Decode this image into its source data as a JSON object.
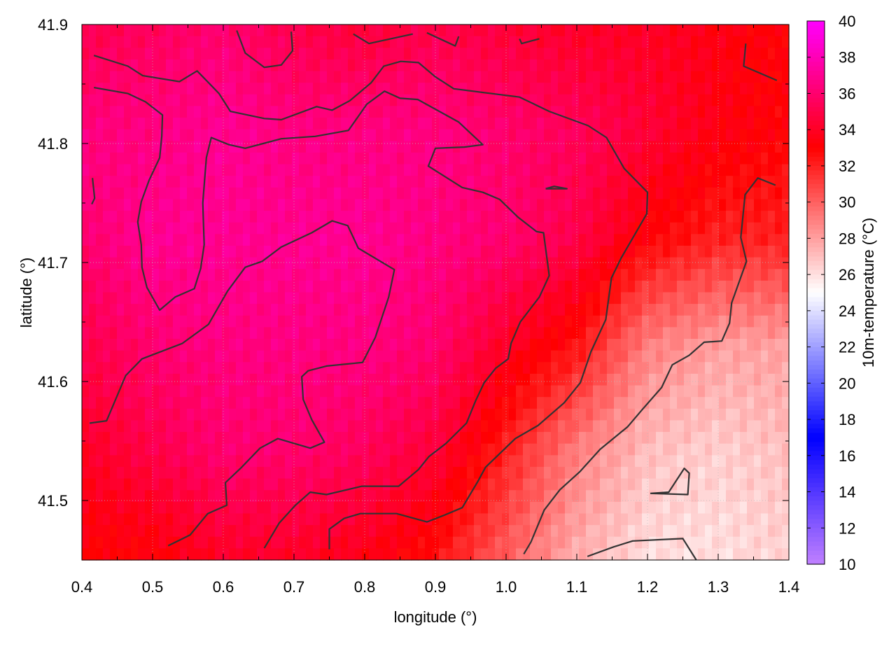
{
  "chart_data": {
    "type": "heatmap",
    "title": "",
    "xlabel": "longitude (°)",
    "ylabel": "latitude (°)",
    "colorbar_label": "10m-temperature (°C)",
    "xlim": [
      0.4,
      1.4
    ],
    "ylim": [
      41.45,
      41.9
    ],
    "x_ticks": [
      "0.4",
      "0.5",
      "0.6",
      "0.7",
      "0.8",
      "0.9",
      "1.0",
      "1.1",
      "1.2",
      "1.3",
      "1.4"
    ],
    "y_ticks": [
      "41.5",
      "41.6",
      "41.7",
      "41.8",
      "41.9"
    ],
    "colorbar_ticks": [
      "10",
      "12",
      "14",
      "16",
      "18",
      "20",
      "22",
      "24",
      "26",
      "28",
      "30",
      "32",
      "34",
      "36",
      "38",
      "40"
    ],
    "clim": [
      10,
      40
    ],
    "colormap": [
      {
        "value": 10,
        "color": "#c080ff"
      },
      {
        "value": 17,
        "color": "#0000ff"
      },
      {
        "value": 25,
        "color": "#ffffff"
      },
      {
        "value": 33,
        "color": "#ff0000"
      },
      {
        "value": 40,
        "color": "#ff00ff"
      }
    ],
    "grid": true,
    "contour_color": "#333333",
    "temperature_grid": {
      "lon": [
        0.4,
        0.5,
        0.6,
        0.7,
        0.8,
        0.9,
        1.0,
        1.1,
        1.2,
        1.3,
        1.4
      ],
      "lat": [
        41.9,
        41.81,
        41.72,
        41.63,
        41.54,
        41.45
      ],
      "values": [
        [
          35,
          35.5,
          36,
          35,
          34.5,
          35,
          34.5,
          34,
          34,
          33.5,
          33
        ],
        [
          36.5,
          36.5,
          37,
          36.5,
          36.5,
          36.5,
          36,
          35.5,
          34.5,
          33.5,
          33
        ],
        [
          36,
          37,
          37,
          37,
          37,
          36.5,
          36,
          35,
          33,
          32,
          32
        ],
        [
          35,
          36,
          36.5,
          36.5,
          36.5,
          36,
          34,
          32.5,
          29,
          28,
          28
        ],
        [
          34,
          35,
          36,
          36,
          35.5,
          34.5,
          32,
          29,
          27,
          26.5,
          27
        ],
        [
          33,
          33,
          34,
          34,
          33.5,
          32.5,
          30,
          27.5,
          26,
          26,
          26.5
        ]
      ]
    },
    "contours": [
      [
        [
          0.411,
          41.565
        ],
        [
          0.435,
          41.567
        ],
        [
          0.462,
          41.605
        ],
        [
          0.485,
          41.619
        ],
        [
          0.542,
          41.632
        ],
        [
          0.579,
          41.648
        ],
        [
          0.606,
          41.676
        ],
        [
          0.631,
          41.696
        ],
        [
          0.655,
          41.701
        ],
        [
          0.682,
          41.713
        ],
        [
          0.725,
          41.725
        ],
        [
          0.754,
          41.735
        ],
        [
          0.776,
          41.731
        ],
        [
          0.791,
          41.712
        ],
        [
          0.842,
          41.694
        ],
        [
          0.834,
          41.671
        ],
        [
          0.815,
          41.637
        ],
        [
          0.797,
          41.616
        ],
        [
          0.746,
          41.613
        ],
        [
          0.72,
          41.609
        ],
        [
          0.711,
          41.604
        ],
        [
          0.713,
          41.585
        ],
        [
          0.725,
          41.568
        ],
        [
          0.743,
          41.549
        ],
        [
          0.723,
          41.544
        ],
        [
          0.677,
          41.552
        ],
        [
          0.652,
          41.544
        ],
        [
          0.626,
          41.528
        ],
        [
          0.603,
          41.515
        ],
        [
          0.605,
          41.496
        ],
        [
          0.578,
          41.489
        ],
        [
          0.553,
          41.471
        ],
        [
          0.522,
          41.462
        ]
      ],
      [
        [
          0.417,
          41.874
        ],
        [
          0.465,
          41.865
        ],
        [
          0.486,
          41.857
        ],
        [
          0.538,
          41.852
        ],
        [
          0.563,
          41.861
        ],
        [
          0.594,
          41.842
        ],
        [
          0.61,
          41.827
        ],
        [
          0.658,
          41.821
        ],
        [
          0.682,
          41.82
        ],
        [
          0.732,
          41.831
        ],
        [
          0.754,
          41.828
        ],
        [
          0.779,
          41.836
        ],
        [
          0.809,
          41.851
        ],
        [
          0.827,
          41.865
        ],
        [
          0.851,
          41.869
        ],
        [
          0.876,
          41.868
        ],
        [
          0.9,
          41.856
        ],
        [
          0.926,
          41.846
        ],
        [
          1.019,
          41.839
        ],
        [
          1.061,
          41.827
        ],
        [
          1.116,
          41.815
        ],
        [
          1.142,
          41.805
        ],
        [
          1.167,
          41.779
        ],
        [
          1.2,
          41.759
        ],
        [
          1.199,
          41.741
        ],
        [
          1.163,
          41.704
        ],
        [
          1.149,
          41.687
        ],
        [
          1.141,
          41.652
        ],
        [
          1.12,
          41.625
        ],
        [
          1.105,
          41.599
        ],
        [
          1.082,
          41.582
        ],
        [
          1.045,
          41.563
        ],
        [
          1.013,
          41.552
        ],
        [
          0.971,
          41.528
        ],
        [
          0.96,
          41.516
        ],
        [
          0.938,
          41.494
        ],
        [
          0.914,
          41.488
        ],
        [
          0.888,
          41.482
        ],
        [
          0.845,
          41.489
        ],
        [
          0.794,
          41.489
        ],
        [
          0.771,
          41.485
        ],
        [
          0.75,
          41.476
        ],
        [
          0.75,
          41.459
        ]
      ],
      [
        [
          0.417,
          41.847
        ],
        [
          0.465,
          41.842
        ],
        [
          0.49,
          41.835
        ],
        [
          0.514,
          41.824
        ],
        [
          0.513,
          41.806
        ],
        [
          0.51,
          41.788
        ],
        [
          0.495,
          41.769
        ],
        [
          0.484,
          41.751
        ],
        [
          0.479,
          41.734
        ],
        [
          0.484,
          41.715
        ],
        [
          0.485,
          41.696
        ],
        [
          0.492,
          41.679
        ],
        [
          0.51,
          41.66
        ],
        [
          0.532,
          41.671
        ],
        [
          0.559,
          41.678
        ],
        [
          0.568,
          41.695
        ],
        [
          0.573,
          41.715
        ],
        [
          0.571,
          41.75
        ],
        [
          0.576,
          41.788
        ],
        [
          0.583,
          41.805
        ],
        [
          0.608,
          41.799
        ],
        [
          0.631,
          41.796
        ],
        [
          0.682,
          41.804
        ],
        [
          0.73,
          41.806
        ],
        [
          0.777,
          41.811
        ],
        [
          0.803,
          41.833
        ],
        [
          0.828,
          41.844
        ],
        [
          0.85,
          41.838
        ],
        [
          0.875,
          41.837
        ],
        [
          0.933,
          41.818
        ],
        [
          0.967,
          41.799
        ],
        [
          0.941,
          41.797
        ],
        [
          0.9,
          41.796
        ],
        [
          0.89,
          41.781
        ],
        [
          0.938,
          41.763
        ],
        [
          0.967,
          41.759
        ],
        [
          0.991,
          41.753
        ],
        [
          1.017,
          41.738
        ],
        [
          1.043,
          41.726
        ],
        [
          1.053,
          41.725
        ],
        [
          1.061,
          41.689
        ],
        [
          1.047,
          41.671
        ],
        [
          1.02,
          41.65
        ],
        [
          1.007,
          41.632
        ],
        [
          1.003,
          41.619
        ],
        [
          0.985,
          41.611
        ],
        [
          0.969,
          41.599
        ],
        [
          0.957,
          41.584
        ],
        [
          0.944,
          41.565
        ],
        [
          0.915,
          41.548
        ],
        [
          0.891,
          41.537
        ],
        [
          0.876,
          41.526
        ],
        [
          0.848,
          41.512
        ],
        [
          0.796,
          41.512
        ],
        [
          0.746,
          41.505
        ],
        [
          0.723,
          41.507
        ],
        [
          0.702,
          41.496
        ],
        [
          0.679,
          41.481
        ],
        [
          0.658,
          41.46
        ]
      ],
      [
        [
          1.025,
          41.455
        ],
        [
          1.035,
          41.465
        ],
        [
          1.054,
          41.492
        ],
        [
          1.076,
          41.509
        ],
        [
          1.104,
          41.524
        ],
        [
          1.133,
          41.543
        ],
        [
          1.172,
          41.562
        ],
        [
          1.192,
          41.576
        ],
        [
          1.22,
          41.595
        ],
        [
          1.235,
          41.614
        ],
        [
          1.259,
          41.622
        ],
        [
          1.28,
          41.633
        ],
        [
          1.305,
          41.634
        ],
        [
          1.316,
          41.649
        ],
        [
          1.319,
          41.666
        ],
        [
          1.34,
          41.701
        ],
        [
          1.332,
          41.721
        ],
        [
          1.338,
          41.757
        ],
        [
          1.356,
          41.771
        ],
        [
          1.381,
          41.765
        ]
      ],
      [
        [
          1.115,
          41.453
        ],
        [
          1.152,
          41.461
        ],
        [
          1.179,
          41.466
        ],
        [
          1.25,
          41.468
        ],
        [
          1.269,
          41.45
        ]
      ],
      [
        [
          1.204,
          41.506
        ],
        [
          1.23,
          41.507
        ],
        [
          1.252,
          41.527
        ],
        [
          1.259,
          41.523
        ],
        [
          1.257,
          41.505
        ],
        [
          1.204,
          41.506
        ]
      ],
      [
        [
          0.619,
          41.895
        ],
        [
          0.631,
          41.876
        ],
        [
          0.658,
          41.864
        ],
        [
          0.682,
          41.866
        ],
        [
          0.698,
          41.878
        ],
        [
          0.696,
          41.894
        ]
      ],
      [
        [
          0.784,
          41.892
        ],
        [
          0.806,
          41.884
        ],
        [
          0.868,
          41.892
        ]
      ],
      [
        [
          0.888,
          41.893
        ],
        [
          0.928,
          41.882
        ],
        [
          0.933,
          41.89
        ]
      ],
      [
        [
          1.019,
          41.888
        ],
        [
          1.022,
          41.884
        ],
        [
          1.047,
          41.888
        ]
      ],
      [
        [
          1.339,
          41.884
        ],
        [
          1.336,
          41.865
        ],
        [
          1.383,
          41.853
        ]
      ],
      [
        [
          0.415,
          41.771
        ],
        [
          0.418,
          41.754
        ],
        [
          0.414,
          41.749
        ]
      ],
      [
        [
          1.056,
          41.762
        ],
        [
          1.068,
          41.764
        ],
        [
          1.086,
          41.762
        ],
        [
          1.056,
          41.762
        ]
      ]
    ]
  }
}
